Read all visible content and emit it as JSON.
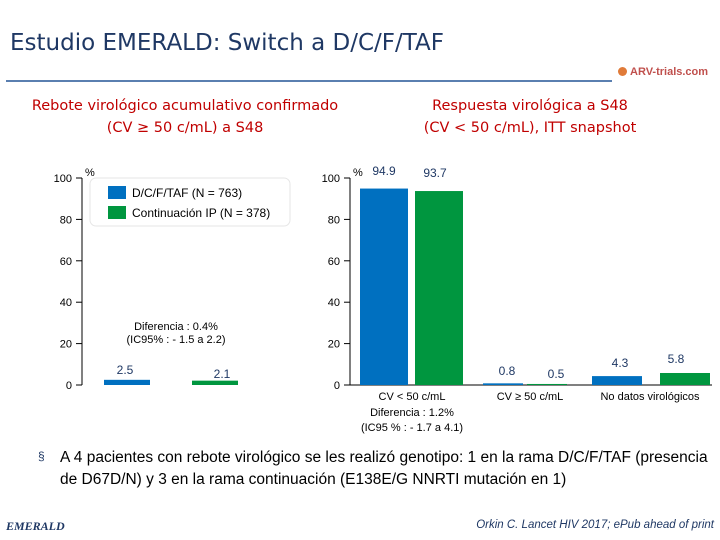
{
  "slide": {
    "title": "Estudio EMERALD: Switch a D/C/F/TAF",
    "logo": "ARV-trials.com",
    "bullet_symbol": "§",
    "note": "A 4 pacientes con rebote virológico se les realizó genotipo: 1 en la rama D/C/F/TAF (presencia de D67D/N) y 3 en la rama continuación (E138E/G NNRTI mutación en 1)",
    "footer_left": "EMERALD",
    "footer_right": "Orkin C. Lancet HIV 2017; ePub ahead of print"
  },
  "colors": {
    "series1": "#0070c0",
    "series2": "#00963f",
    "title": "#1f3864",
    "subtitle": "#c00000"
  },
  "chart_data": [
    {
      "type": "bar",
      "title_lines": [
        "Rebote virológico acumulativo confirmado",
        "(CV ≥ 50 c/mL) a S48"
      ],
      "y_unit": "%",
      "ylim": [
        0,
        100
      ],
      "yticks": [
        0,
        20,
        40,
        60,
        80,
        100
      ],
      "legend": {
        "position": "top-center",
        "entries": [
          "D/C/F/TAF (N = 763)",
          "Continuación IP (N = 378)"
        ]
      },
      "series": [
        {
          "name": "D/C/F/TAF (N = 763)",
          "values": [
            2.5
          ]
        },
        {
          "name": "Continuación IP (N = 378)",
          "values": [
            2.1
          ]
        }
      ],
      "value_labels": [
        "2.5",
        "2.1"
      ],
      "annotation_lines": [
        "Diferencia : 0.4%",
        "(IC95% : - 1.5 a 2.2)"
      ]
    },
    {
      "type": "bar",
      "title_lines": [
        "Respuesta virológica a S48",
        "(CV < 50 c/mL), ITT snapshot"
      ],
      "y_unit": "%",
      "ylim": [
        0,
        100
      ],
      "yticks": [
        0,
        20,
        40,
        60,
        80,
        100
      ],
      "categories": [
        "CV < 50 c/mL",
        "CV ≥ 50 c/mL",
        "No datos virológicos"
      ],
      "series": [
        {
          "values": [
            94.9,
            0.8,
            4.3
          ]
        },
        {
          "values": [
            93.7,
            0.5,
            5.8
          ]
        }
      ],
      "value_labels": [
        [
          "94.9",
          "0.8",
          "4.3"
        ],
        [
          "93.7",
          "0.5",
          "5.8"
        ]
      ],
      "annotation_lines": [
        "Diferencia : 1.2%",
        "(IC95 % : - 1.7 a 4.1)"
      ]
    }
  ]
}
